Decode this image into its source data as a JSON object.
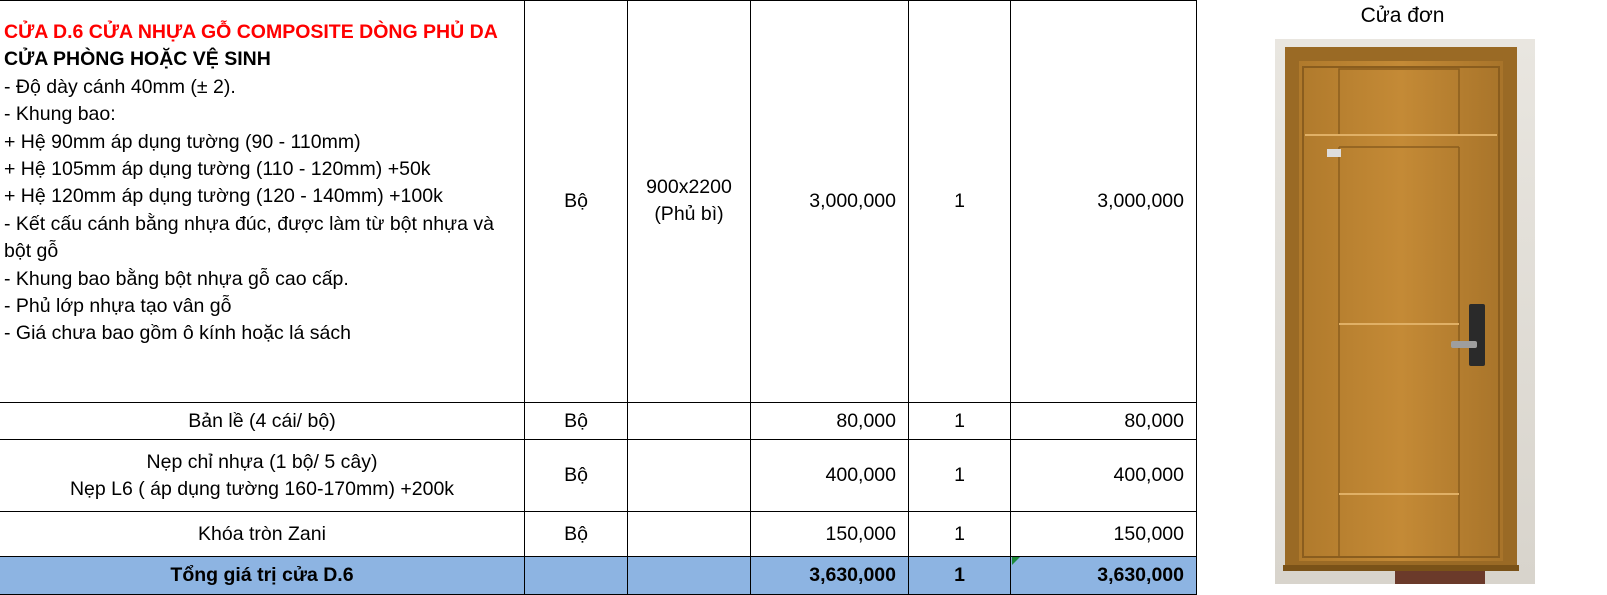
{
  "product": {
    "title_red": "CỬA D.6 CỬA NHỰA GỖ COMPOSITE DÒNG PHỦ DA",
    "subtitle": "CỬA PHÒNG HOẶC VỆ SINH",
    "specs": [
      "- Độ dày cánh 40mm (± 2).",
      "- Khung bao:",
      "+ Hệ 90mm áp dụng tường (90 - 110mm)",
      "+ Hệ 105mm áp dụng tường (110 - 120mm) +50k",
      "+ Hệ 120mm áp dụng tường (120 - 140mm) +100k",
      "- Kết cấu cánh bằng nhựa đúc, được làm từ bột nhựa và bột gỗ",
      "- Khung bao bằng bột nhựa gỗ cao cấp.",
      "- Phủ lớp nhựa tạo vân gỗ",
      "- Giá chưa bao gồm ô kính hoặc lá sách"
    ],
    "unit": "Bộ",
    "size_line1": "900x2200",
    "size_line2": "(Phủ bì)",
    "price": "3,000,000",
    "qty": "1",
    "total": "3,000,000"
  },
  "rows": [
    {
      "name": "Bản lề (4 cái/ bộ)",
      "unit": "Bộ",
      "price": "80,000",
      "qty": "1",
      "total": "80,000"
    },
    {
      "name": "Nẹp chỉ nhựa (1 bộ/ 5 cây)",
      "name2": "Nẹp L6 ( áp dụng tường 160-170mm) +200k",
      "unit": "Bộ",
      "price": "400,000",
      "qty": "1",
      "total": "400,000"
    },
    {
      "name": "Khóa tròn Zani",
      "unit": "Bộ",
      "price": "150,000",
      "qty": "1",
      "total": "150,000"
    }
  ],
  "summary": {
    "label": "Tổng giá trị cửa D.6",
    "price": "3,630,000",
    "qty": "1",
    "total": "3,630,000"
  },
  "image": {
    "title": "Cửa đơn",
    "icon": "door-photo"
  },
  "colors": {
    "title_red": "#ff0000",
    "total_bg": "#8db4e2"
  }
}
